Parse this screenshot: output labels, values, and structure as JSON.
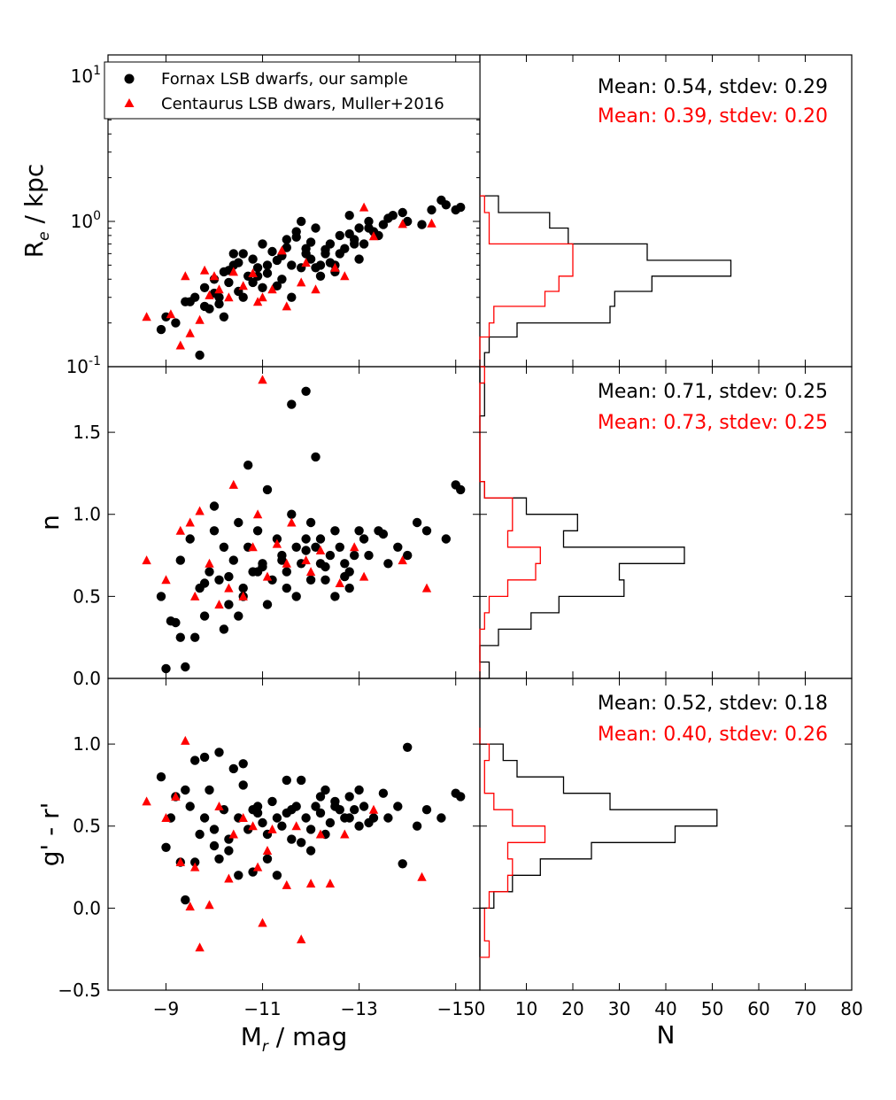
{
  "chart_data": [
    {
      "id": "re_vs_mag",
      "type": "scatter",
      "ylabel": "R_e / kpc",
      "yscale": "log",
      "ylim": [
        0.1,
        14
      ],
      "xlim": [
        -7.8,
        -15.5
      ],
      "ytick_labels": [
        "10^-1",
        "10^0",
        "10^1"
      ],
      "legend": {
        "position": "top-left",
        "entries": [
          {
            "label": "Fornax LSB dwarfs, our sample",
            "marker": "circle",
            "color": "#000000"
          },
          {
            "label": "Centaurus LSB dwars, Muller+2016",
            "marker": "triangle",
            "color": "#ff0000"
          }
        ]
      },
      "series": [
        {
          "name": "Fornax LSB dwarfs, our sample",
          "color": "#000000",
          "marker": "circle",
          "x": [
            -8.9,
            -9.0,
            -9.4,
            -9.7,
            -9.8,
            -9.9,
            -10.0,
            -10.1,
            -10.2,
            -10.3,
            -10.4,
            -10.5,
            -10.6,
            -10.7,
            -10.8,
            -10.9,
            -11.0,
            -11.1,
            -11.2,
            -11.3,
            -11.4,
            -11.5,
            -11.6,
            -11.7,
            -11.8,
            -11.9,
            -12.0,
            -12.1,
            -12.2,
            -12.3,
            -12.4,
            -12.5,
            -12.6,
            -12.7,
            -12.8,
            -12.9,
            -13.0,
            -13.1,
            -13.2,
            -13.3,
            -13.5,
            -13.7,
            -14.0,
            -14.3,
            -14.5,
            -14.8,
            -15.0,
            -15.1,
            -10.2,
            -10.6,
            -11.0,
            -11.4,
            -11.8,
            -12.2,
            -12.6,
            -13.0,
            -9.5,
            -10.0,
            -10.5,
            -11.5,
            -12.0,
            -12.5,
            -13.4,
            -9.8,
            -10.3,
            -10.8,
            -11.3,
            -11.9,
            -12.4,
            -12.9,
            -9.2,
            -10.9,
            -11.6,
            -12.1,
            -13.2,
            -13.9,
            -14.7,
            -9.6,
            -10.1,
            -10.4,
            -11.1,
            -11.7,
            -12.3,
            -12.8,
            -13.6
          ],
          "y": [
            0.18,
            0.22,
            0.28,
            0.12,
            0.35,
            0.25,
            0.4,
            0.3,
            0.45,
            0.38,
            0.5,
            0.33,
            0.6,
            0.42,
            0.55,
            0.48,
            0.7,
            0.44,
            0.62,
            0.36,
            0.58,
            0.75,
            0.5,
            0.85,
            1.0,
            0.65,
            0.55,
            0.9,
            0.5,
            0.6,
            0.7,
            0.45,
            0.8,
            0.65,
            1.1,
            0.75,
            0.9,
            0.7,
            1.0,
            0.85,
            0.95,
            1.1,
            1.0,
            0.95,
            1.2,
            1.3,
            1.2,
            1.25,
            0.22,
            0.3,
            0.35,
            0.4,
            0.48,
            0.42,
            0.6,
            0.55,
            0.28,
            0.32,
            0.52,
            0.66,
            0.72,
            0.5,
            0.8,
            0.26,
            0.46,
            0.38,
            0.54,
            0.6,
            0.52,
            0.7,
            0.2,
            0.42,
            0.3,
            0.48,
            0.9,
            1.15,
            1.4,
            0.3,
            0.27,
            0.6,
            0.5,
            0.78,
            0.64,
            0.82,
            1.05
          ]
        },
        {
          "name": "Centaurus LSB dwars, Muller+2016",
          "color": "#ff0000",
          "marker": "triangle",
          "x": [
            -8.6,
            -9.1,
            -9.3,
            -9.5,
            -9.7,
            -9.9,
            -10.1,
            -10.3,
            -10.6,
            -10.9,
            -11.2,
            -11.5,
            -11.8,
            -12.1,
            -12.5,
            -13.1,
            -13.3,
            -14.5,
            -9.4,
            -9.8,
            -10.4,
            -10.8,
            -11.4,
            -11.9,
            -12.7,
            -13.9,
            -10.0,
            -11.0
          ],
          "y": [
            0.22,
            0.23,
            0.14,
            0.17,
            0.21,
            0.31,
            0.34,
            0.3,
            0.36,
            0.28,
            0.34,
            0.26,
            0.38,
            0.34,
            0.48,
            1.25,
            0.79,
            0.97,
            0.42,
            0.46,
            0.45,
            0.44,
            0.63,
            0.52,
            0.42,
            0.96,
            0.42,
            0.3
          ]
        }
      ]
    },
    {
      "id": "re_hist",
      "type": "step-histogram",
      "xlim": [
        0,
        80
      ],
      "annotations": [
        {
          "text": "Mean: 0.54, stdev: 0.29",
          "color": "#000000"
        },
        {
          "text": "Mean: 0.39, stdev: 0.20",
          "color": "#ff0000"
        }
      ],
      "bin_edges": [
        0.1,
        0.125,
        0.16,
        0.2,
        0.26,
        0.33,
        0.42,
        0.54,
        0.7,
        0.9,
        1.15,
        1.5
      ],
      "series": [
        {
          "color": "#000000",
          "counts": [
            1,
            2,
            8,
            28,
            29,
            37,
            54,
            36,
            19,
            15,
            4
          ]
        },
        {
          "color": "#ff0000",
          "counts": [
            0,
            0,
            2,
            3,
            14,
            17,
            20,
            20,
            2,
            2,
            1
          ]
        }
      ]
    },
    {
      "id": "n_vs_mag",
      "type": "scatter",
      "ylabel": "n",
      "ylim": [
        0.0,
        1.9
      ],
      "xlim": [
        -7.8,
        -15.5
      ],
      "ytick_labels": [
        "0.0",
        "0.5",
        "1.0",
        "1.5"
      ],
      "series": [
        {
          "name": "Fornax LSB dwarfs, our sample",
          "color": "#000000",
          "marker": "circle",
          "x": [
            -8.9,
            -9.0,
            -9.2,
            -9.3,
            -9.4,
            -9.5,
            -9.6,
            -9.7,
            -9.8,
            -9.9,
            -10.0,
            -10.1,
            -10.2,
            -10.3,
            -10.4,
            -10.5,
            -10.6,
            -10.7,
            -10.8,
            -10.9,
            -11.0,
            -11.1,
            -11.2,
            -11.3,
            -11.4,
            -11.5,
            -11.6,
            -11.7,
            -11.8,
            -11.9,
            -12.0,
            -12.1,
            -12.2,
            -12.3,
            -12.4,
            -12.5,
            -12.6,
            -12.7,
            -12.8,
            -12.9,
            -13.0,
            -13.2,
            -13.4,
            -13.6,
            -13.8,
            -14.0,
            -14.4,
            -14.8,
            -15.0,
            -15.1,
            -11.9,
            -11.6,
            -12.1,
            -10.7,
            -9.3,
            -9.1,
            -10.2,
            -10.6,
            -11.1,
            -11.5,
            -12.0,
            -12.5,
            -13.1,
            -9.8,
            -10.3,
            -10.9,
            -11.4,
            -11.9,
            -12.3,
            -12.8,
            -13.5,
            -14.2,
            -10.0,
            -10.5,
            -11.0,
            -11.7,
            -12.2,
            -12.7
          ],
          "y": [
            0.5,
            0.06,
            0.34,
            0.72,
            0.07,
            0.85,
            0.25,
            0.55,
            0.38,
            0.65,
            0.9,
            0.6,
            0.8,
            0.45,
            0.72,
            0.95,
            0.55,
            0.8,
            0.65,
            0.9,
            0.7,
            1.15,
            0.6,
            0.85,
            0.75,
            0.65,
            1.0,
            0.8,
            0.7,
            0.85,
            0.95,
            0.8,
            0.7,
            0.6,
            0.75,
            0.9,
            0.8,
            0.7,
            0.65,
            0.75,
            0.9,
            0.75,
            0.9,
            0.7,
            0.8,
            0.75,
            0.9,
            0.85,
            1.18,
            1.15,
            1.75,
            1.67,
            1.35,
            1.3,
            0.25,
            0.35,
            0.3,
            0.5,
            0.45,
            0.55,
            0.6,
            0.5,
            0.85,
            0.58,
            0.62,
            0.65,
            0.72,
            0.78,
            0.68,
            0.55,
            0.88,
            0.95,
            1.05,
            0.38,
            0.68,
            0.5,
            0.85,
            0.62
          ]
        },
        {
          "name": "Centaurus LSB dwars, Muller+2016",
          "color": "#ff0000",
          "marker": "triangle",
          "x": [
            -8.6,
            -9.0,
            -9.3,
            -9.5,
            -9.7,
            -9.9,
            -10.1,
            -10.4,
            -10.6,
            -10.9,
            -11.1,
            -11.3,
            -11.6,
            -11.9,
            -12.2,
            -12.6,
            -13.1,
            -13.9,
            -14.4,
            -11.0,
            -9.6,
            -10.3,
            -10.8,
            -11.5,
            -12.0,
            -12.9
          ],
          "y": [
            0.72,
            0.6,
            0.9,
            0.95,
            1.02,
            0.7,
            0.45,
            1.18,
            0.5,
            1.0,
            0.62,
            0.82,
            0.95,
            0.72,
            0.78,
            0.58,
            0.62,
            0.72,
            0.55,
            1.82,
            0.5,
            0.55,
            0.8,
            0.7,
            0.65,
            0.8
          ]
        }
      ]
    },
    {
      "id": "n_hist",
      "type": "step-histogram",
      "xlim": [
        0,
        80
      ],
      "annotations": [
        {
          "text": "Mean: 0.71, stdev: 0.25",
          "color": "#000000"
        },
        {
          "text": "Mean: 0.73, stdev: 0.25",
          "color": "#ff0000"
        }
      ],
      "bin_edges": [
        0.0,
        0.1,
        0.2,
        0.3,
        0.4,
        0.5,
        0.6,
        0.7,
        0.8,
        0.9,
        1.0,
        1.1,
        1.2,
        1.3,
        1.4,
        1.5,
        1.6,
        1.7,
        1.8,
        1.9
      ],
      "series": [
        {
          "color": "#000000",
          "counts": [
            2,
            0,
            4,
            11,
            17,
            31,
            30,
            44,
            18,
            21,
            10,
            1,
            0,
            0,
            0,
            0,
            1,
            1,
            0
          ]
        },
        {
          "color": "#ff0000",
          "counts": [
            0,
            0,
            0,
            1,
            2,
            6,
            12,
            13,
            6,
            7,
            7,
            1,
            0,
            0,
            0,
            0,
            0,
            0,
            1
          ]
        }
      ]
    },
    {
      "id": "gr_vs_mag",
      "type": "scatter",
      "ylabel": "g' - r'",
      "ylim": [
        -0.5,
        1.4
      ],
      "xlim": [
        -7.8,
        -15.5
      ],
      "xlabel": "M_r / mag",
      "xtick_labels": [
        "−9",
        "−11",
        "−13",
        "−15"
      ],
      "ytick_labels": [
        "−0.5",
        "0.0",
        "0.5",
        "1.0"
      ],
      "series": [
        {
          "name": "Fornax LSB dwarfs, our sample",
          "color": "#000000",
          "marker": "circle",
          "x": [
            -8.9,
            -9.0,
            -9.1,
            -9.3,
            -9.4,
            -9.5,
            -9.6,
            -9.7,
            -9.8,
            -9.9,
            -10.0,
            -10.1,
            -10.2,
            -10.3,
            -10.4,
            -10.5,
            -10.6,
            -10.7,
            -10.8,
            -10.9,
            -11.0,
            -11.1,
            -11.2,
            -11.3,
            -11.4,
            -11.5,
            -11.6,
            -11.7,
            -11.8,
            -11.9,
            -12.0,
            -12.1,
            -12.2,
            -12.3,
            -12.4,
            -12.5,
            -12.6,
            -12.7,
            -12.8,
            -12.9,
            -13.0,
            -13.1,
            -13.3,
            -13.5,
            -13.8,
            -14.0,
            -14.4,
            -14.7,
            -15.0,
            -15.1,
            -9.4,
            -10.1,
            -10.6,
            -11.3,
            -12.0,
            -13.6,
            -9.6,
            -10.3,
            -10.8,
            -11.6,
            -12.3,
            -12.8,
            -9.8,
            -10.5,
            -11.1,
            -11.8,
            -12.5,
            -13.2,
            -14.2,
            -10.0,
            -10.9,
            -11.5,
            -12.2,
            -13.0,
            -9.2,
            -13.9
          ],
          "y": [
            0.8,
            0.37,
            0.55,
            0.28,
            0.05,
            0.62,
            0.9,
            0.45,
            0.55,
            0.72,
            0.38,
            0.95,
            0.6,
            0.42,
            0.85,
            0.55,
            0.75,
            0.48,
            0.6,
            0.62,
            0.52,
            0.45,
            0.65,
            0.55,
            0.5,
            0.58,
            0.42,
            0.62,
            0.78,
            0.55,
            0.48,
            0.62,
            0.58,
            0.72,
            0.52,
            0.65,
            0.6,
            0.55,
            0.68,
            0.6,
            0.72,
            0.62,
            0.55,
            0.7,
            0.62,
            0.98,
            0.6,
            0.55,
            0.7,
            0.68,
            0.72,
            0.3,
            0.88,
            0.2,
            0.35,
            0.55,
            0.28,
            0.35,
            0.22,
            0.6,
            0.45,
            0.55,
            0.92,
            0.2,
            0.3,
            0.4,
            0.62,
            0.52,
            0.5,
            0.48,
            0.58,
            0.78,
            0.68,
            0.5,
            0.68,
            0.27
          ]
        },
        {
          "name": "Centaurus LSB dwars, Muller+2016",
          "color": "#ff0000",
          "marker": "triangle",
          "x": [
            -8.6,
            -9.0,
            -9.4,
            -9.5,
            -9.7,
            -9.9,
            -10.1,
            -10.3,
            -10.6,
            -10.9,
            -11.0,
            -11.2,
            -11.5,
            -11.8,
            -12.0,
            -12.4,
            -12.7,
            -13.3,
            -14.3,
            -9.3,
            -9.6,
            -10.4,
            -10.8,
            -11.1,
            -11.7,
            -12.2,
            -9.2
          ],
          "y": [
            0.65,
            0.55,
            1.02,
            0.01,
            -0.24,
            0.02,
            0.62,
            0.18,
            0.55,
            0.25,
            -0.09,
            0.48,
            0.14,
            -0.19,
            0.15,
            0.15,
            0.45,
            0.6,
            0.19,
            0.28,
            0.25,
            0.45,
            0.5,
            0.35,
            0.5,
            0.45,
            0.68
          ]
        }
      ]
    },
    {
      "id": "gr_hist",
      "type": "step-histogram",
      "xlim": [
        0,
        80
      ],
      "xlabel": "N",
      "xtick_labels": [
        "0",
        "10",
        "20",
        "30",
        "40",
        "50",
        "60",
        "70",
        "80"
      ],
      "annotations": [
        {
          "text": "Mean: 0.52, stdev: 0.18",
          "color": "#000000"
        },
        {
          "text": "Mean: 0.40, stdev: 0.26",
          "color": "#ff0000"
        }
      ],
      "bin_edges": [
        -0.3,
        -0.2,
        -0.1,
        0.0,
        0.1,
        0.2,
        0.3,
        0.4,
        0.5,
        0.6,
        0.7,
        0.8,
        0.9,
        1.0,
        1.1
      ],
      "series": [
        {
          "color": "#000000",
          "counts": [
            0,
            0,
            0,
            3,
            7,
            13,
            24,
            42,
            51,
            28,
            18,
            8,
            5,
            0
          ]
        },
        {
          "color": "#ff0000",
          "counts": [
            2,
            1,
            1,
            2,
            6,
            7,
            6,
            14,
            7,
            3,
            1,
            1,
            2,
            0
          ]
        }
      ]
    }
  ]
}
